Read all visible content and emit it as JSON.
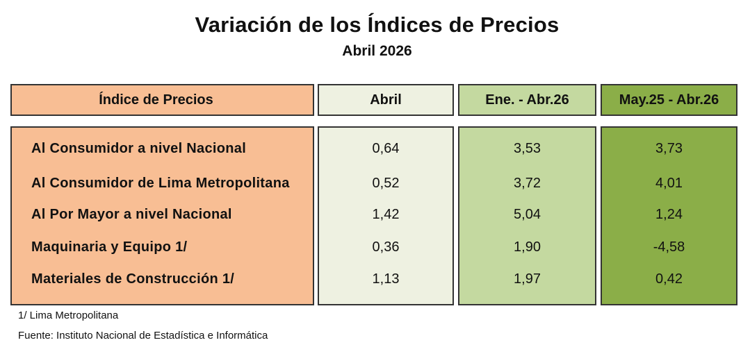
{
  "title": "Variación de los Índices de Precios",
  "subtitle": "Abril 2026",
  "colors": {
    "name_col": "#f8be94",
    "abril_col": "#eef1e1",
    "ene_col": "#c4d9a0",
    "may_col": "#8bae48"
  },
  "chart_data": {
    "type": "table",
    "columns": [
      "Índice de Precios",
      "Abril",
      "Ene. - Abr.26",
      "May.25 - Abr.26"
    ],
    "rows": [
      {
        "label": "Al Consumidor a nivel Nacional",
        "values": [
          "0,64",
          "3,53",
          "3,73"
        ]
      },
      {
        "label": "Al Consumidor de Lima Metropolitana",
        "values": [
          "0,52",
          "3,72",
          "4,01"
        ]
      },
      {
        "label": "Al Por Mayor a nivel Nacional",
        "values": [
          "1,42",
          "5,04",
          "1,24"
        ]
      },
      {
        "label": "Maquinaria y Equipo 1/",
        "values": [
          "0,36",
          "1,90",
          "-4,58"
        ]
      },
      {
        "label": "Materiales de Construcción 1/",
        "values": [
          "1,13",
          "1,97",
          "0,42"
        ]
      }
    ]
  },
  "notes": [
    "1/ Lima Metropolitana",
    "Fuente: Instituto Nacional de Estadística e Informática"
  ]
}
